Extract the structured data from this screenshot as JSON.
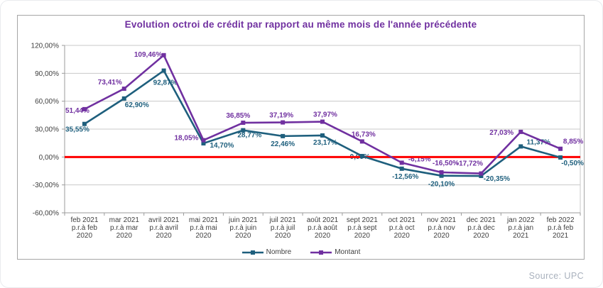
{
  "source": "Source: UPC",
  "chart_data": {
    "type": "line",
    "title": "Evolution octroi de crédit par rapport au même mois de l'année précédente",
    "categories": [
      [
        "feb 2021",
        "p.r.à feb",
        "2020"
      ],
      [
        "mar 2021",
        "p.r.à mar",
        "2020"
      ],
      [
        "avril 2021",
        "p.r.à avril",
        "2020"
      ],
      [
        "mai 2021",
        "p.r.à mai",
        "2020"
      ],
      [
        "juin 2021",
        "p.r.à juin",
        "2020"
      ],
      [
        "juil 2021",
        "p.r.à juil",
        "2020"
      ],
      [
        "août 2021",
        "p.r.à août",
        "2020"
      ],
      [
        "sept 2021",
        "p.r.à sept",
        "2020"
      ],
      [
        "oct 2021",
        "p.r.à oct",
        "2020"
      ],
      [
        "nov 2021",
        "p.r.à nov",
        "2020"
      ],
      [
        "dec 2021",
        "p.r.à dec",
        "2020"
      ],
      [
        "jan 2022",
        "p.r.à jan",
        "2021"
      ],
      [
        "feb 2022",
        "p.r.à feb",
        "2021"
      ]
    ],
    "series": [
      {
        "name": "Nombre",
        "color": "#1e5f7d",
        "values": [
          35.55,
          62.9,
          92.87,
          14.7,
          28.77,
          22.46,
          23.17,
          0.99,
          -12.56,
          -20.1,
          -20.35,
          11.37,
          -0.5
        ],
        "labels": [
          "35,55%",
          "62,90%",
          "92,87%",
          "14,70%",
          "28,77%",
          "22,46%",
          "23,17%",
          "0,99%",
          "-12,56%",
          "-20,10%",
          "-20,35%",
          "11,37%",
          "-0,50%"
        ],
        "label_offsets": [
          [
            -10,
            11
          ],
          [
            18,
            12
          ],
          [
            2,
            20
          ],
          [
            26,
            6
          ],
          [
            9,
            10
          ],
          [
            0,
            14
          ],
          [
            4,
            13
          ],
          [
            -3,
            4
          ],
          [
            5,
            14
          ],
          [
            0,
            15
          ],
          [
            22,
            7
          ],
          [
            25,
            -3
          ],
          [
            17,
            11
          ]
        ]
      },
      {
        "name": "Montant",
        "color": "#7030a0",
        "values": [
          51.44,
          73.41,
          109.46,
          18.05,
          36.85,
          37.19,
          37.97,
          16.73,
          -6.15,
          -16.5,
          -17.72,
          27.03,
          8.85
        ],
        "labels": [
          "51,44%",
          "73,41%",
          "109,46%",
          "18,05%",
          "36,85%",
          "37,19%",
          "37,97%",
          "16,73%",
          "-6,15%",
          "-16,50%",
          "-17,72%",
          "27,03%",
          "8,85%"
        ],
        "label_offsets": [
          [
            -10,
            5
          ],
          [
            -20,
            -6
          ],
          [
            -22,
            2
          ],
          [
            -24,
            0
          ],
          [
            -7,
            -7
          ],
          [
            -2,
            -7
          ],
          [
            4,
            -7
          ],
          [
            2,
            -7
          ],
          [
            25,
            -2
          ],
          [
            6,
            -10
          ],
          [
            -16,
            -11
          ],
          [
            -27,
            4
          ],
          [
            18,
            -7
          ]
        ]
      }
    ],
    "y_axis": {
      "min": -60,
      "max": 120,
      "ticks": [
        {
          "value": 120,
          "label": "120,00%"
        },
        {
          "value": 90,
          "label": "90,00%"
        },
        {
          "value": 60,
          "label": "60,00%"
        },
        {
          "value": 30,
          "label": "30,00%"
        },
        {
          "value": 0,
          "label": "0,00%"
        },
        {
          "value": -30,
          "label": "-30,00%"
        },
        {
          "value": -60,
          "label": "-60,00%"
        }
      ]
    },
    "zero_line": {
      "value": 0,
      "color": "#fe0000"
    },
    "grid": true,
    "legend_position": "bottom"
  },
  "colors": {
    "grid": "#c9c9c9",
    "axis": "#9b9b9b",
    "axis_text": "#3f3f3f",
    "title": "#7030a0",
    "card_border": "#a6a6a6",
    "source_text": "#a9b1bd"
  }
}
